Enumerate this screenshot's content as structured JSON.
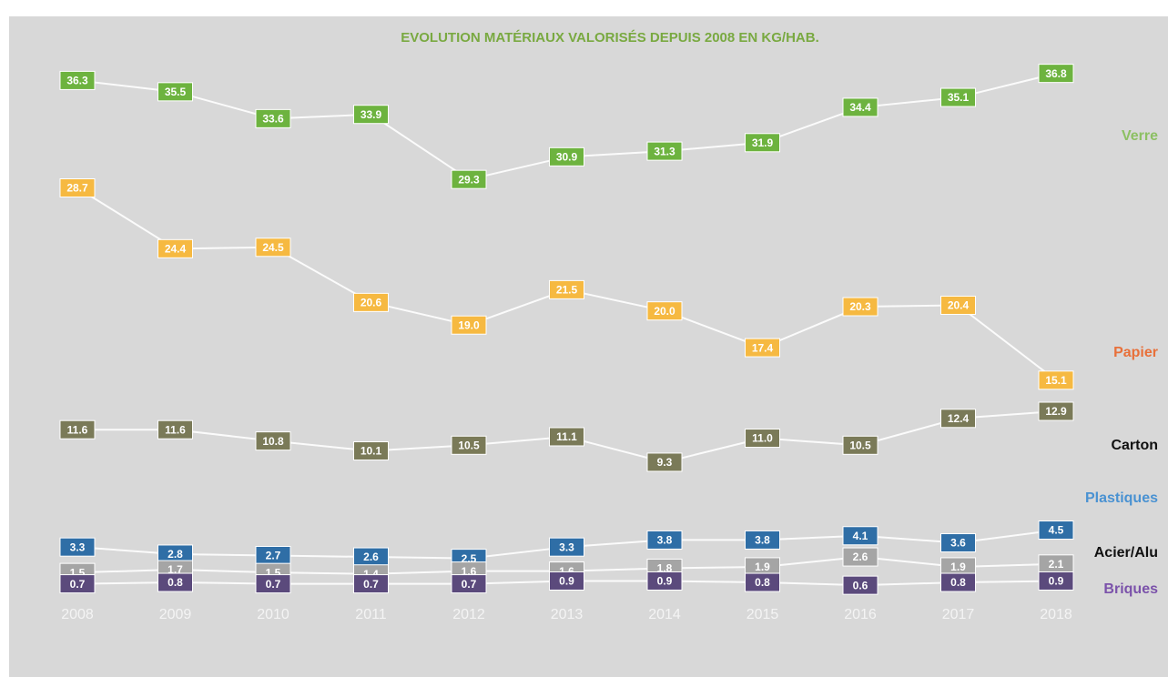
{
  "chart_data": {
    "type": "line",
    "title": "EVOLUTION MATÉRIAUX VALORISÉS DEPUIS 2008 EN KG/HAB.",
    "categories": [
      "2008",
      "2009",
      "2010",
      "2011",
      "2012",
      "2013",
      "2014",
      "2015",
      "2016",
      "2017",
      "2018"
    ],
    "ylim": [
      -1,
      38
    ],
    "series": [
      {
        "name": "Verre",
        "color": "#6db33f",
        "label_color": "#8cc063",
        "values": [
          36.3,
          35.5,
          33.6,
          33.9,
          29.3,
          30.9,
          31.3,
          31.9,
          34.4,
          35.1,
          36.8
        ],
        "value_labels": [
          "36.3",
          "35.5",
          "33.6",
          "33.9",
          "29.3",
          "30.9",
          "31.3",
          "31.9",
          "34.4",
          "35.1",
          "36.8"
        ]
      },
      {
        "name": "Papier",
        "color": "#f6b941",
        "label_color": "#e8703a",
        "values": [
          28.7,
          24.4,
          24.5,
          20.6,
          19.0,
          21.5,
          20.0,
          17.4,
          20.3,
          20.4,
          15.1
        ],
        "value_labels": [
          "28.7",
          "24.4",
          "24.5",
          "20.6",
          "19.0",
          "21.5",
          "20.0",
          "17.4",
          "20.3",
          "20.4",
          "15.1"
        ]
      },
      {
        "name": "Carton",
        "color": "#7a7a58",
        "label_color": "#111111",
        "values": [
          11.6,
          11.6,
          10.8,
          10.1,
          10.5,
          11.1,
          9.3,
          11.0,
          10.5,
          12.4,
          12.9
        ],
        "value_labels": [
          "11.6",
          "11.6",
          "10.8",
          "10.1",
          "10.5",
          "11.1",
          "9.3",
          "11.0",
          "10.5",
          "12.4",
          "12.9"
        ]
      },
      {
        "name": "Plastiques",
        "color": "#2f6ea6",
        "label_color": "#4a92d2",
        "values": [
          3.3,
          2.8,
          2.7,
          2.6,
          2.5,
          3.3,
          3.8,
          3.8,
          4.1,
          3.6,
          4.5
        ],
        "value_labels": [
          "3.3",
          "2.8",
          "2.7",
          "2.6",
          "2.5",
          "3.3",
          "3.8",
          "3.8",
          "4.1",
          "3.6",
          "4.5"
        ]
      },
      {
        "name": "Acier/Alu",
        "color": "#a5a5a5",
        "label_color": "#111111",
        "values": [
          1.5,
          1.7,
          1.5,
          1.4,
          1.6,
          1.6,
          1.8,
          1.9,
          2.6,
          1.9,
          2.1
        ],
        "value_labels": [
          "1.5",
          "1.7",
          "1.5",
          "1.4",
          "1.6",
          "1.6",
          "1.8",
          "1.9",
          "2.6",
          "1.9",
          "2.1"
        ]
      },
      {
        "name": "Briques",
        "color": "#5b4a7c",
        "label_color": "#7b52aa",
        "values": [
          0.7,
          0.8,
          0.7,
          0.7,
          0.7,
          0.9,
          0.9,
          0.8,
          0.6,
          0.8,
          0.9
        ],
        "value_labels": [
          "0.7",
          "0.8",
          "0.7",
          "0.7",
          "0.7",
          "0.9",
          "0.9",
          "0.8",
          "0.6",
          "0.8",
          "0.9"
        ]
      }
    ]
  }
}
